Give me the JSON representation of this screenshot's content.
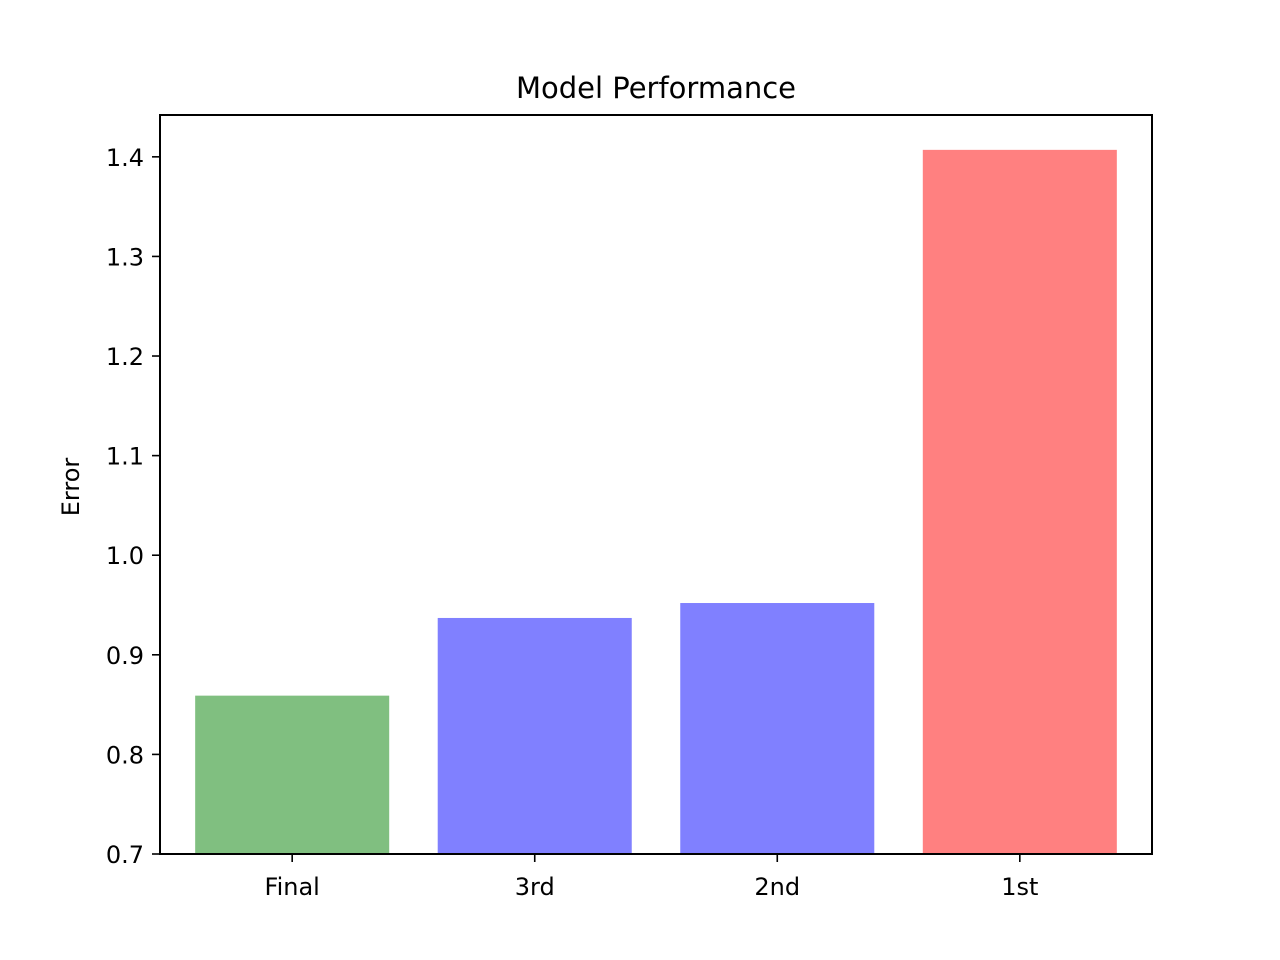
{
  "chart_data": {
    "type": "bar",
    "title": "Model Performance",
    "xlabel": "",
    "ylabel": "Error",
    "categories": [
      "Final",
      "3rd",
      "2nd",
      "1st"
    ],
    "values": [
      0.859,
      0.937,
      0.952,
      1.407
    ],
    "colors": [
      "#80bf80",
      "#8080ff",
      "#8080ff",
      "#ff8080"
    ],
    "ylim": [
      0.7,
      1.442
    ],
    "yticks": [
      0.7,
      0.8,
      0.9,
      1.0,
      1.1,
      1.2,
      1.3,
      1.4
    ],
    "ytick_labels": [
      "0.7",
      "0.8",
      "0.9",
      "1.0",
      "1.1",
      "1.2",
      "1.3",
      "1.4"
    ],
    "grid": false,
    "legend": "none"
  }
}
